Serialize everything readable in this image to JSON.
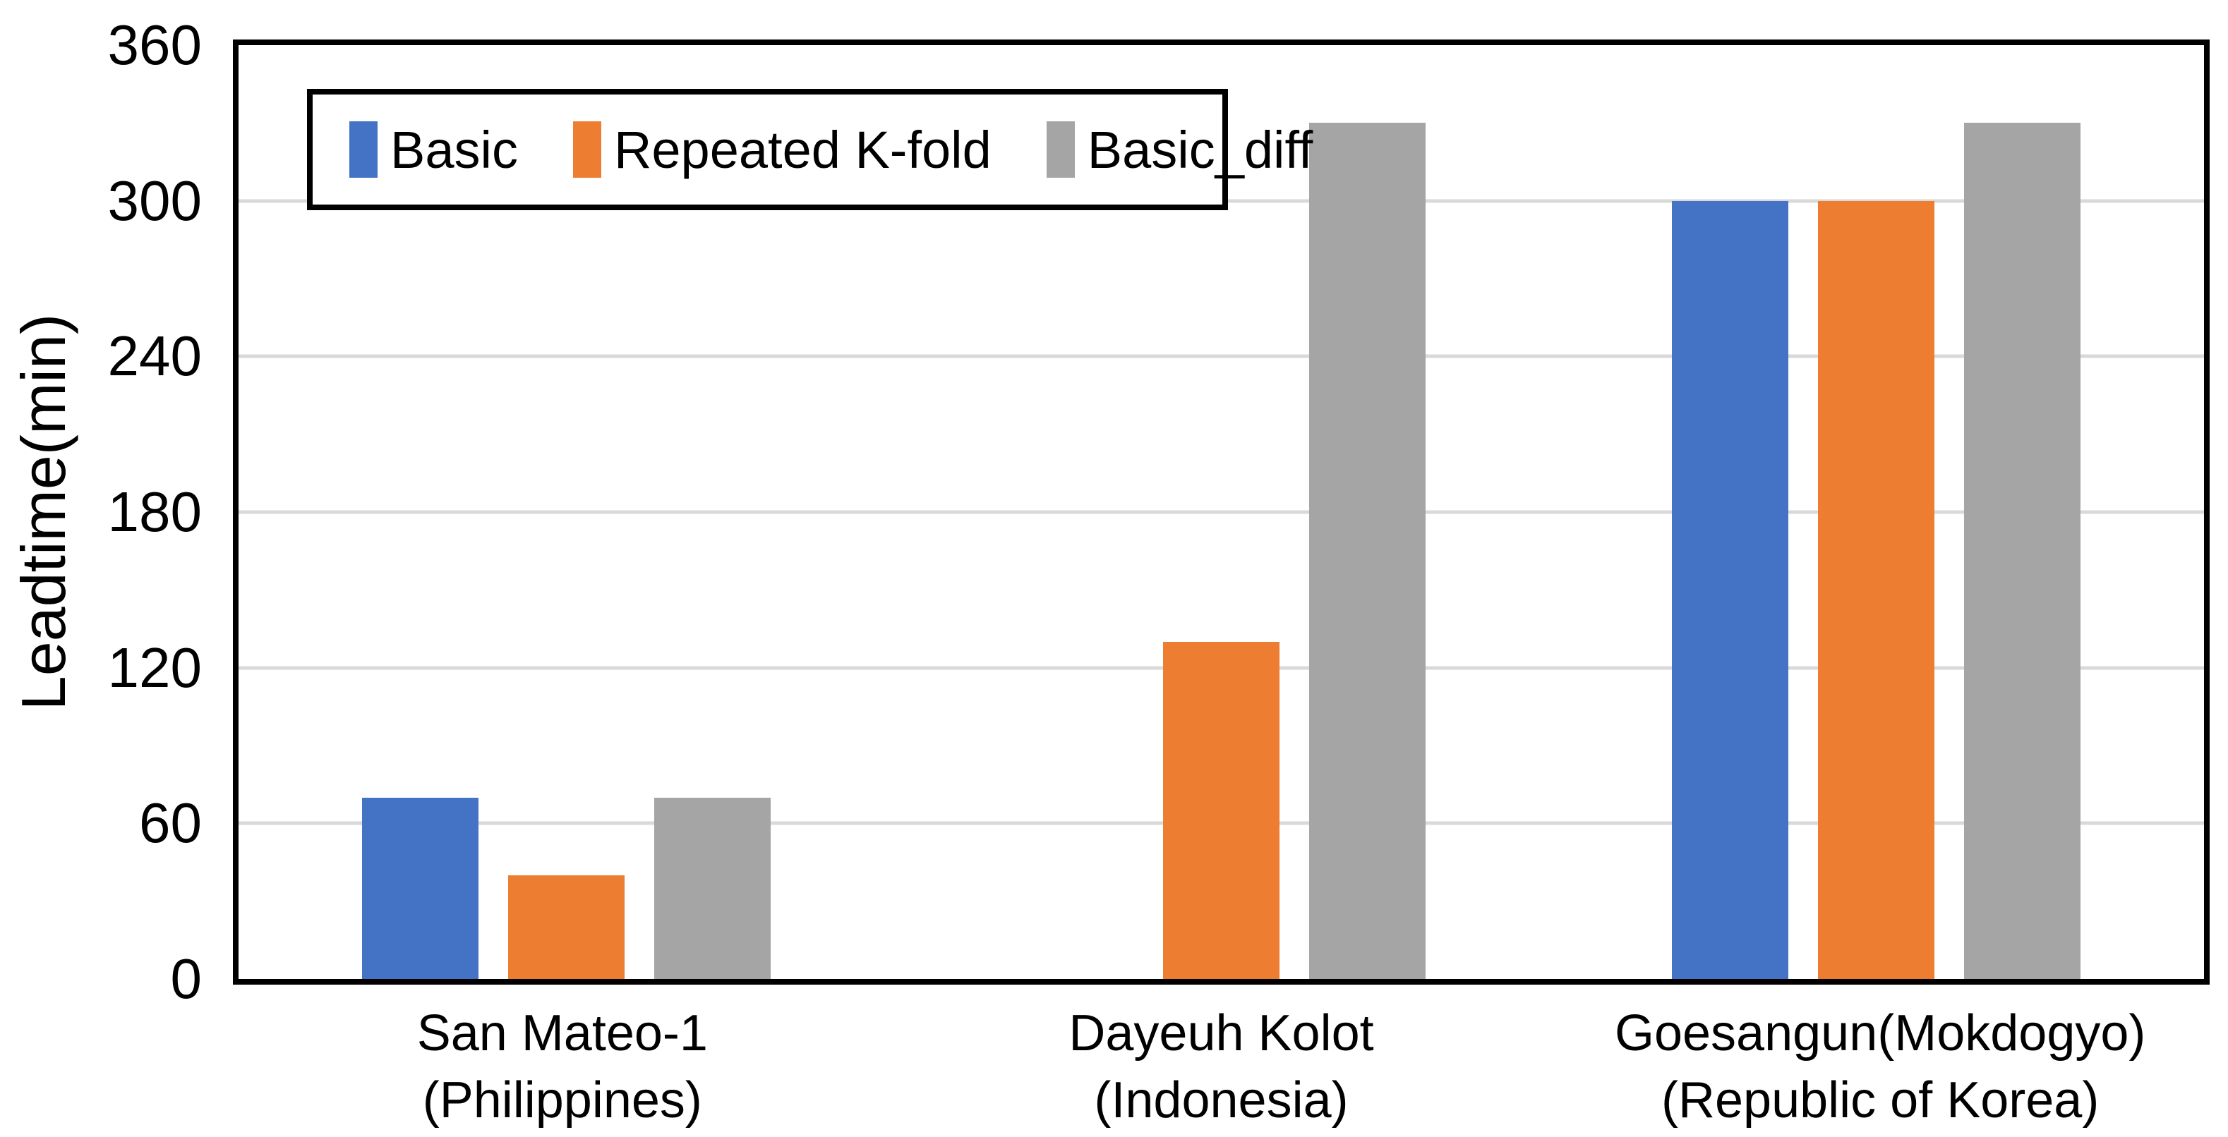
{
  "chart_data": {
    "type": "bar",
    "title": "",
    "xlabel": "",
    "ylabel": "Leadtime(min)",
    "ylim": [
      0,
      360
    ],
    "ytick_step": 60,
    "yticks": [
      0,
      60,
      120,
      180,
      240,
      300,
      360
    ],
    "grid": true,
    "legend_position": "top-left-inside",
    "categories": [
      {
        "line1": "San Mateo-1",
        "line2": "(Philippines)"
      },
      {
        "line1": "Dayeuh Kolot",
        "line2": "(Indonesia)"
      },
      {
        "line1": "Goesangun(Mokdogyo)",
        "line2": "(Republic of Korea)"
      }
    ],
    "series": [
      {
        "name": "Basic",
        "color": "#4472C4",
        "values": [
          70,
          0,
          300
        ]
      },
      {
        "name": "Repeated K-fold",
        "color": "#ED7D31",
        "values": [
          40,
          130,
          300
        ]
      },
      {
        "name": "Basic_diff",
        "color": "#A5A5A5",
        "values": [
          70,
          330,
          330
        ]
      }
    ],
    "colors": {
      "gridline": "#D9D9D9",
      "axis": "#000000",
      "background": "#FFFFFF"
    }
  }
}
